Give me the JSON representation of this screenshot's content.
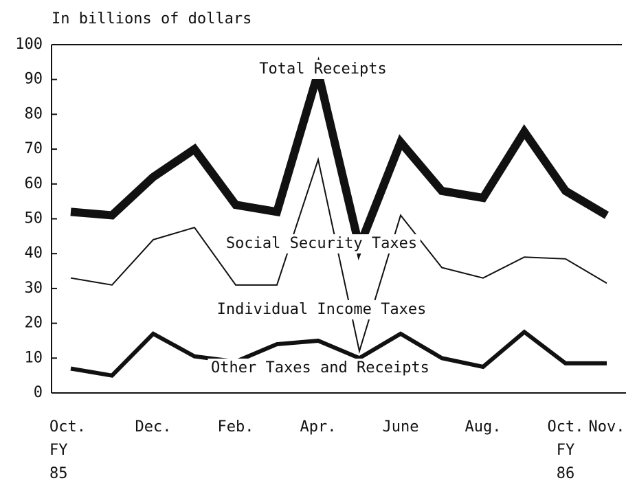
{
  "chart_data": {
    "type": "line",
    "y_axis_label": "In billions of dollars",
    "categories": [
      "Oct.\nFY\n85",
      null,
      "Dec.",
      null,
      "Feb.",
      null,
      "Apr.",
      null,
      "June",
      null,
      "Aug.",
      null,
      "Oct.\nFY\n86",
      "Nov."
    ],
    "series": [
      {
        "name": "Total Receipts",
        "color": "#111111",
        "values": [
          52,
          51,
          62,
          70,
          54,
          52,
          92,
          42,
          72,
          58,
          56,
          75,
          58,
          51
        ]
      },
      {
        "name": "Individual Income Taxes",
        "color": "#111111",
        "values": [
          33,
          31,
          44,
          47.5,
          31,
          31,
          67,
          12,
          51,
          36,
          33,
          39,
          38.5,
          31.5
        ]
      },
      {
        "name": "Other Taxes and Receipts",
        "color": "#111111",
        "values": [
          7,
          5,
          17,
          10.5,
          9,
          14,
          15,
          10,
          17,
          10,
          7.5,
          17.5,
          8.5,
          8.5
        ]
      }
    ],
    "annotations": [
      "Social Security Taxes"
    ],
    "ylim": [
      0,
      100
    ],
    "yticks": [
      0,
      10,
      20,
      30,
      40,
      50,
      60,
      70,
      80,
      90,
      100
    ]
  }
}
